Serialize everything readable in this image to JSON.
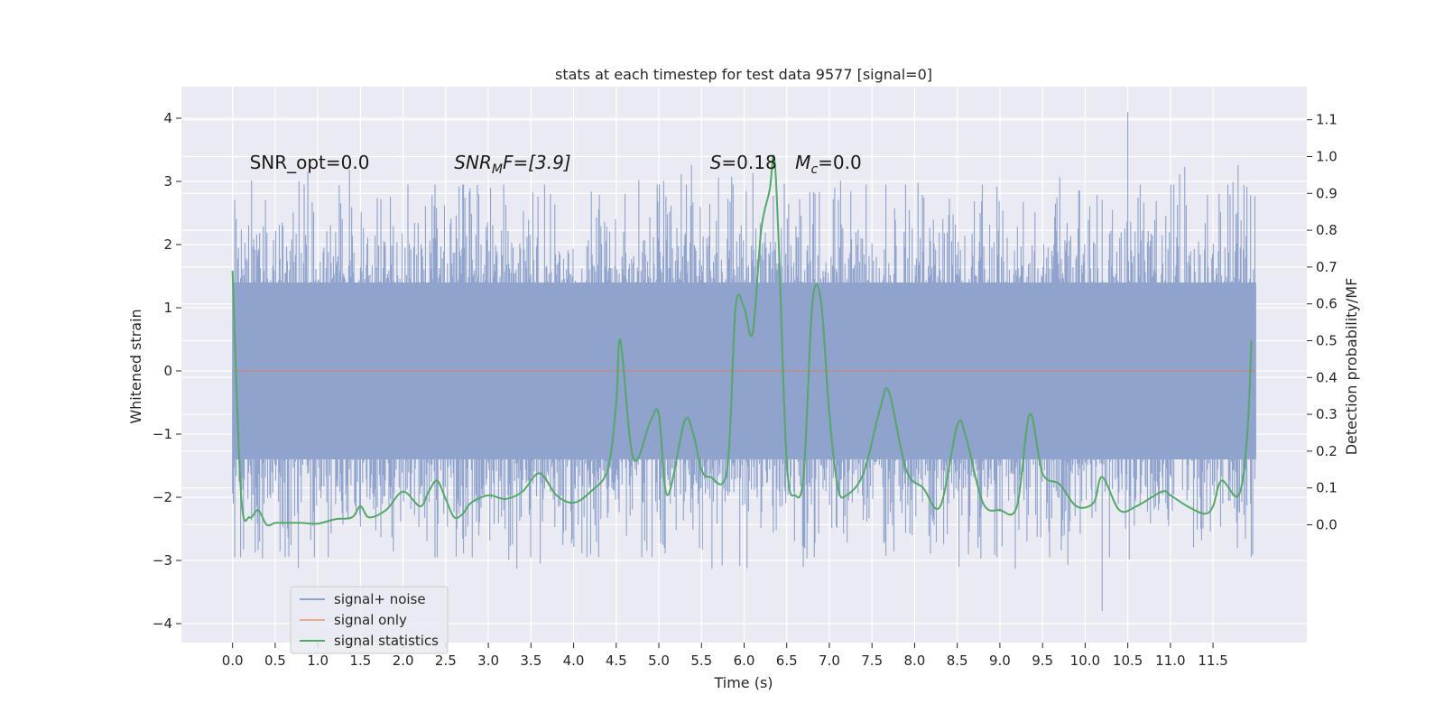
{
  "chart_data": {
    "type": "line",
    "title": "stats at each timestep for test data 9577 [signal=0]",
    "xlabel": "Time (s)",
    "ylabel": "Whitened strain",
    "y2label": "Detection probability/MF",
    "xlim": [
      -0.6,
      12.6
    ],
    "ylim": [
      -4.3,
      4.5
    ],
    "y2lim": [
      -0.32,
      1.19
    ],
    "xticks": [
      0.0,
      0.5,
      1.0,
      1.5,
      2.0,
      2.5,
      3.0,
      3.5,
      4.0,
      4.5,
      5.0,
      5.5,
      6.0,
      6.5,
      7.0,
      7.5,
      8.0,
      8.5,
      9.0,
      9.5,
      10.0,
      10.5,
      11.0,
      11.5
    ],
    "xtick_labels": [
      "0.0",
      "0.5",
      "1.0",
      "1.5",
      "2.0",
      "2.5",
      "3.0",
      "3.5",
      "4.0",
      "4.5",
      "5.0",
      "5.5",
      "6.0",
      "6.5",
      "7.0",
      "7.5",
      "8.0",
      "8.5",
      "9.0",
      "9.5",
      "10.0",
      "10.5",
      "11.0",
      "11.5"
    ],
    "yticks": [
      -4,
      -3,
      -2,
      -1,
      0,
      1,
      2,
      3,
      4
    ],
    "ytick_labels": [
      "−4",
      "−3",
      "−2",
      "−1",
      "0",
      "1",
      "2",
      "3",
      "4"
    ],
    "y2ticks": [
      0.0,
      0.1,
      0.2,
      0.3,
      0.4,
      0.5,
      0.6,
      0.7,
      0.8,
      0.9,
      1.0,
      1.1
    ],
    "y2tick_labels": [
      "0.0",
      "0.1",
      "0.2",
      "0.3",
      "0.4",
      "0.5",
      "0.6",
      "0.7",
      "0.8",
      "0.9",
      "1.0",
      "1.1"
    ],
    "grid": true,
    "legend_position": "lower-left",
    "annotations": [
      {
        "prefix": "SNR_opt=0.0",
        "sub": "",
        "suffix": "",
        "italic": false,
        "x": 0.2,
        "y": 3.3
      },
      {
        "prefix": "SNR",
        "sub": "M",
        "suffix": "F=[3.9]",
        "italic": true,
        "x": 2.6,
        "y": 3.3
      },
      {
        "prefix": "S",
        "sub": "",
        "suffix": "=0.18",
        "italic": true,
        "x": 5.6,
        "y": 3.3
      },
      {
        "prefix": "M",
        "sub": "c",
        "suffix": "=0.0",
        "italic": true,
        "x": 6.6,
        "y": 3.3
      }
    ],
    "noise_series": {
      "name": "signal+ noise",
      "color": "#8fa3cc",
      "x_range": [
        0.0,
        12.0
      ],
      "core_envelope": [
        -1.4,
        1.4
      ],
      "typical_extremes": [
        -2.6,
        2.6
      ],
      "max_value": 4.1,
      "min_value": -3.8
    },
    "series": [
      {
        "name": "signal+ noise",
        "color": "#8fa3cc",
        "axis": "left"
      },
      {
        "name": "signal only",
        "color": "#dd8452",
        "axis": "left",
        "x": [
          0.0,
          12.0
        ],
        "values": [
          0.0,
          0.0
        ]
      },
      {
        "name": "signal statistics",
        "color": "#55a868",
        "axis": "right",
        "x": [
          0.0,
          0.1,
          0.2,
          0.3,
          0.4,
          0.5,
          0.6,
          0.8,
          1.0,
          1.2,
          1.4,
          1.5,
          1.6,
          1.8,
          2.0,
          2.2,
          2.3,
          2.4,
          2.5,
          2.6,
          2.7,
          2.8,
          3.0,
          3.2,
          3.4,
          3.6,
          3.8,
          4.0,
          4.2,
          4.4,
          4.5,
          4.55,
          4.7,
          4.9,
          5.0,
          5.1,
          5.3,
          5.4,
          5.5,
          5.6,
          5.8,
          5.9,
          6.0,
          6.1,
          6.2,
          6.3,
          6.35,
          6.4,
          6.5,
          6.6,
          6.7,
          6.8,
          6.9,
          7.0,
          7.1,
          7.2,
          7.4,
          7.6,
          7.7,
          7.9,
          8.1,
          8.3,
          8.5,
          8.6,
          8.8,
          9.0,
          9.2,
          9.35,
          9.5,
          9.7,
          9.9,
          10.1,
          10.2,
          10.4,
          10.6,
          10.9,
          11.0,
          11.2,
          11.4,
          11.5,
          11.6,
          11.8,
          11.9,
          11.95
        ],
        "values": [
          0.69,
          0.08,
          0.02,
          0.04,
          0.0,
          0.005,
          0.005,
          0.005,
          0.003,
          0.015,
          0.02,
          0.05,
          0.02,
          0.04,
          0.09,
          0.05,
          0.09,
          0.12,
          0.07,
          0.02,
          0.03,
          0.06,
          0.08,
          0.07,
          0.09,
          0.14,
          0.08,
          0.06,
          0.09,
          0.15,
          0.33,
          0.5,
          0.18,
          0.28,
          0.3,
          0.08,
          0.28,
          0.25,
          0.15,
          0.13,
          0.15,
          0.59,
          0.59,
          0.52,
          0.8,
          0.91,
          1.0,
          0.8,
          0.17,
          0.08,
          0.14,
          0.6,
          0.61,
          0.3,
          0.1,
          0.08,
          0.14,
          0.32,
          0.36,
          0.15,
          0.1,
          0.05,
          0.27,
          0.24,
          0.06,
          0.04,
          0.05,
          0.3,
          0.14,
          0.11,
          0.05,
          0.06,
          0.13,
          0.04,
          0.05,
          0.09,
          0.08,
          0.05,
          0.03,
          0.05,
          0.12,
          0.08,
          0.24,
          0.5
        ]
      }
    ]
  }
}
